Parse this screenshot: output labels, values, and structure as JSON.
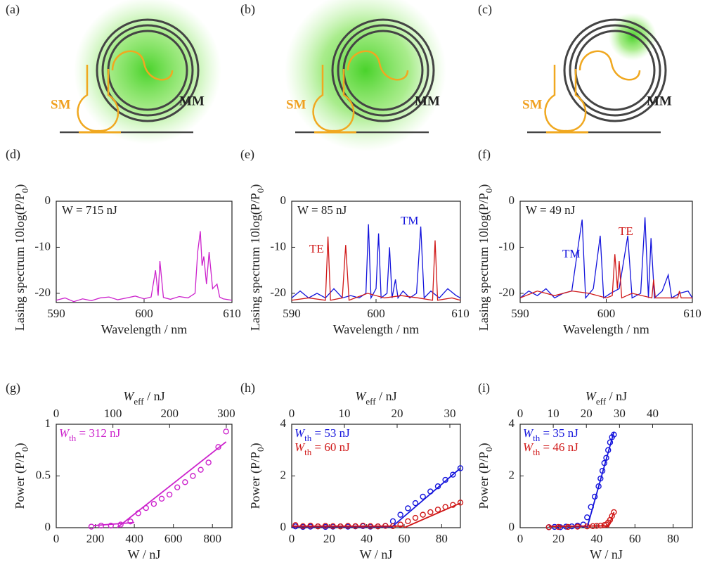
{
  "diagrams": [
    {
      "label": "(a)",
      "sm": "SM",
      "mm": "MM"
    },
    {
      "label": "(b)",
      "sm": "SM",
      "mm": "MM"
    },
    {
      "label": "(c)",
      "sm": "SM",
      "mm": "MM"
    }
  ],
  "chart_data": [
    {
      "type": "line",
      "panel": "(d)",
      "annotation": "W = 715 nJ",
      "xlabel": "Wavelength / nm",
      "ylabel": {
        "main": "Lasing spectrum 10log(P/P",
        "sub": "0",
        "rest": ")"
      },
      "xlim": [
        590,
        610
      ],
      "xticks": [
        590,
        600,
        610
      ],
      "ylim": [
        -22,
        0
      ],
      "yticks": [
        0,
        -10,
        -20
      ],
      "series": [
        {
          "color": "#cc22cc",
          "x": [
            590,
            591,
            592,
            593,
            594,
            595,
            596,
            597,
            598,
            599,
            600,
            600.8,
            601.3,
            601.6,
            601.8,
            602.2,
            603,
            604,
            605,
            605.8,
            606.1,
            606.4,
            606.6,
            606.8,
            607.1,
            607.4,
            607.8,
            608.3,
            608.6,
            609,
            610
          ],
          "values": [
            -21.5,
            -21,
            -21.8,
            -21.2,
            -21.6,
            -21,
            -20.8,
            -21.4,
            -21,
            -20.6,
            -21.2,
            -20.8,
            -15,
            -20.5,
            -13,
            -20.9,
            -21.3,
            -20.7,
            -21,
            -20,
            -11,
            -6.5,
            -14,
            -12,
            -18,
            -11,
            -19,
            -18,
            -20.8,
            -21.2,
            -21.5
          ]
        }
      ]
    },
    {
      "type": "line",
      "panel": "(e)",
      "annotation": "W = 85 nJ",
      "xlabel": "Wavelength / nm",
      "ylabel": {
        "main": "Lasing spectrum 10log(P/P",
        "sub": "0",
        "rest": ")"
      },
      "xlim": [
        590,
        610
      ],
      "xticks": [
        590,
        600,
        610
      ],
      "ylim": [
        -22,
        0
      ],
      "yticks": [
        0,
        -10,
        -20
      ],
      "series": [
        {
          "name": "TM",
          "color": "#1414dc",
          "x": [
            590,
            591,
            592,
            593,
            594,
            595,
            596,
            597,
            598,
            598.8,
            599.1,
            599.4,
            600,
            600.3,
            600.6,
            601.3,
            601.6,
            601.9,
            602.3,
            602.6,
            603.2,
            604,
            604.8,
            605.3,
            605.7,
            606.5,
            607.5,
            608.5,
            609.5,
            610
          ],
          "values": [
            -21,
            -19.5,
            -21,
            -20,
            -21,
            -19,
            -21,
            -20.5,
            -21,
            -20,
            -5,
            -21,
            -19,
            -7,
            -21,
            -20,
            -10,
            -21,
            -17,
            -21,
            -19.5,
            -21,
            -20,
            -5.5,
            -21,
            -19.5,
            -21,
            -19,
            -20.5,
            -21
          ]
        },
        {
          "name": "TE",
          "color": "#d01818",
          "x": [
            590,
            592,
            594,
            594.3,
            594.6,
            596,
            596.4,
            596.8,
            599,
            601,
            603,
            605,
            606.7,
            607,
            607.3,
            609,
            610
          ],
          "values": [
            -21.5,
            -21,
            -21.5,
            -7.7,
            -21.5,
            -21,
            -9.5,
            -21.5,
            -20,
            -21,
            -20.5,
            -21,
            -21.5,
            -8.5,
            -21.5,
            -21,
            -21.5
          ]
        }
      ]
    },
    {
      "type": "line",
      "panel": "(f)",
      "annotation": "W = 49 nJ",
      "xlabel": "Wavelength / nm",
      "ylabel": {
        "main": "Lasing spectrum 10log(P/P",
        "sub": "0",
        "rest": ")"
      },
      "xlim": [
        590,
        610
      ],
      "xticks": [
        590,
        600,
        610
      ],
      "ylim": [
        -22,
        0
      ],
      "yticks": [
        0,
        -10,
        -20
      ],
      "series": [
        {
          "name": "TM",
          "color": "#1414dc",
          "x": [
            590,
            591,
            592,
            593,
            594,
            595,
            596,
            596.8,
            597.2,
            597.6,
            598.5,
            599.3,
            599.7,
            600.5,
            601.5,
            602.5,
            603,
            604,
            604.5,
            604.9,
            605.2,
            605.6,
            606.5,
            607.2,
            607.6,
            608.5,
            609.5,
            610
          ],
          "values": [
            -21,
            -19.5,
            -20.5,
            -19,
            -21,
            -20,
            -19.5,
            -9,
            -4,
            -21,
            -19,
            -7.5,
            -21,
            -20,
            -19,
            -7.5,
            -21,
            -20,
            -3.5,
            -21,
            -8,
            -21,
            -19.5,
            -16,
            -21,
            -20,
            -19.5,
            -21
          ]
        },
        {
          "name": "TE",
          "color": "#d01818",
          "x": [
            590,
            592,
            594,
            596,
            598,
            600,
            600.7,
            601,
            601.3,
            601.5,
            601.8,
            603,
            605.3,
            605.5,
            605.7,
            608.3,
            608.5,
            608.7,
            610
          ],
          "values": [
            -21,
            -19.5,
            -20.5,
            -19.5,
            -20,
            -21,
            -20.5,
            -11.5,
            -19,
            -13,
            -21,
            -20,
            -21,
            -17,
            -21,
            -21,
            -19.5,
            -21,
            -21
          ]
        }
      ]
    },
    {
      "type": "scatter",
      "panel": "(g)",
      "xlabel": {
        "main": "W",
        "rest": " / nJ"
      },
      "x2label": {
        "main": "W",
        "sub": "eff",
        "rest": " / nJ"
      },
      "ylabel": {
        "main": "Power (P/P",
        "sub": "0",
        "rest": ")"
      },
      "xlim": [
        0,
        900
      ],
      "xticks": [
        0,
        200,
        400,
        600,
        800
      ],
      "x2lim": [
        0,
        310
      ],
      "x2ticks": [
        0,
        100,
        200,
        300
      ],
      "ylim": [
        0,
        1
      ],
      "yticks": [
        0,
        0.5,
        1
      ],
      "series": [
        {
          "name": {
            "main": "W",
            "sub": "th",
            "rest": " = 312 nJ"
          },
          "color": "#cc22cc",
          "style": "markers",
          "x": [
            180,
            230,
            280,
            330,
            380,
            420,
            460,
            500,
            540,
            580,
            620,
            660,
            700,
            740,
            780,
            830,
            870
          ],
          "values": [
            0.01,
            0.02,
            0.02,
            0.03,
            0.06,
            0.14,
            0.19,
            0.23,
            0.28,
            0.32,
            0.39,
            0.44,
            0.5,
            0.56,
            0.63,
            0.78,
            0.93
          ]
        },
        {
          "color": "#cc22cc",
          "style": "line",
          "x": [
            190,
            400
          ],
          "values": [
            0.02,
            0.05
          ]
        },
        {
          "color": "#cc22cc",
          "style": "line",
          "x": [
            312,
            870
          ],
          "values": [
            0,
            0.83
          ]
        }
      ]
    },
    {
      "type": "scatter",
      "panel": "(h)",
      "xlabel": {
        "main": "W",
        "rest": " / nJ"
      },
      "x2label": {
        "main": "W",
        "sub": "eff",
        "rest": " / nJ"
      },
      "ylabel": {
        "main": "Power (P/P",
        "sub": "0",
        "rest": ")"
      },
      "xlim": [
        0,
        90
      ],
      "xticks": [
        0,
        20,
        40,
        60,
        80
      ],
      "x2lim": [
        0,
        32
      ],
      "x2ticks": [
        0,
        10,
        20,
        30
      ],
      "ylim": [
        0,
        4
      ],
      "yticks": [
        0,
        2,
        4
      ],
      "series": [
        {
          "name": {
            "main": "W",
            "sub": "th",
            "rest": " = 53 nJ"
          },
          "color": "#1414dc",
          "style": "markers",
          "x": [
            2,
            6,
            10,
            14,
            18,
            22,
            26,
            30,
            34,
            38,
            42,
            46,
            50,
            54,
            58,
            62,
            66,
            70,
            74,
            78,
            82,
            86,
            90
          ],
          "values": [
            0.05,
            0.03,
            0.04,
            0.05,
            0.03,
            0.04,
            0.05,
            0.04,
            0.05,
            0.06,
            0.04,
            0.05,
            0.07,
            0.25,
            0.5,
            0.75,
            0.95,
            1.2,
            1.4,
            1.6,
            1.85,
            2.05,
            2.3
          ]
        },
        {
          "name": {
            "main": "W",
            "sub": "th",
            "rest": " = 60 nJ"
          },
          "color": "#d01818",
          "style": "markers",
          "x": [
            2,
            6,
            10,
            14,
            18,
            22,
            26,
            30,
            34,
            38,
            42,
            46,
            50,
            54,
            58,
            62,
            66,
            70,
            74,
            78,
            82,
            86,
            90
          ],
          "values": [
            0.1,
            0.06,
            0.08,
            0.05,
            0.07,
            0.06,
            0.05,
            0.07,
            0.06,
            0.08,
            0.06,
            0.05,
            0.07,
            0.06,
            0.12,
            0.25,
            0.38,
            0.5,
            0.6,
            0.7,
            0.8,
            0.88,
            0.97
          ]
        },
        {
          "color": "#1414dc",
          "style": "line",
          "x": [
            0,
            53
          ],
          "values": [
            0.04,
            0.04
          ]
        },
        {
          "color": "#1414dc",
          "style": "line",
          "x": [
            53,
            90
          ],
          "values": [
            0,
            2.3
          ]
        },
        {
          "color": "#d01818",
          "style": "line",
          "x": [
            0,
            60
          ],
          "values": [
            0.06,
            0.06
          ]
        },
        {
          "color": "#d01818",
          "style": "line",
          "x": [
            60,
            90
          ],
          "values": [
            0,
            0.95
          ]
        }
      ]
    },
    {
      "type": "scatter",
      "panel": "(i)",
      "xlabel": {
        "main": "W",
        "rest": " / nJ"
      },
      "x2label": {
        "main": "W",
        "sub": "eff",
        "rest": " / nJ"
      },
      "ylabel": {
        "main": "Power (P/P",
        "sub": "0",
        "rest": ")"
      },
      "xlim": [
        0,
        90
      ],
      "xticks": [
        0,
        20,
        40,
        60,
        80
      ],
      "x2lim": [
        0,
        52
      ],
      "x2ticks": [
        0,
        10,
        20,
        30,
        40
      ],
      "ylim": [
        0,
        4
      ],
      "yticks": [
        0,
        2,
        4
      ],
      "series": [
        {
          "name": {
            "main": "W",
            "sub": "th",
            "rest": " = 35 nJ"
          },
          "color": "#1414dc",
          "style": "markers",
          "x": [
            15,
            18,
            21,
            24,
            27,
            30,
            33,
            35,
            37,
            39,
            41,
            42,
            43,
            44,
            45,
            46,
            47,
            48,
            49
          ],
          "values": [
            0.02,
            0.03,
            0.02,
            0.04,
            0.05,
            0.08,
            0.12,
            0.4,
            0.8,
            1.2,
            1.6,
            1.9,
            2.2,
            2.5,
            2.7,
            3.0,
            3.3,
            3.5,
            3.6
          ]
        },
        {
          "name": {
            "main": "W",
            "sub": "th",
            "rest": " = 46 nJ"
          },
          "color": "#d01818",
          "style": "markers",
          "x": [
            15,
            20,
            25,
            30,
            35,
            38,
            40,
            42,
            44,
            45,
            46,
            47,
            48,
            49
          ],
          "values": [
            0.02,
            0.03,
            0.03,
            0.04,
            0.05,
            0.06,
            0.07,
            0.08,
            0.1,
            0.12,
            0.2,
            0.3,
            0.45,
            0.6
          ]
        },
        {
          "color": "#1414dc",
          "style": "line",
          "x": [
            15,
            35
          ],
          "values": [
            0.05,
            0.05
          ]
        },
        {
          "color": "#1414dc",
          "style": "line",
          "x": [
            35,
            49
          ],
          "values": [
            0,
            3.7
          ]
        },
        {
          "color": "#d01818",
          "style": "line",
          "x": [
            15,
            46
          ],
          "values": [
            0.05,
            0.07
          ]
        },
        {
          "color": "#d01818",
          "style": "line",
          "x": [
            46,
            49
          ],
          "values": [
            0,
            0.6
          ]
        }
      ]
    }
  ]
}
